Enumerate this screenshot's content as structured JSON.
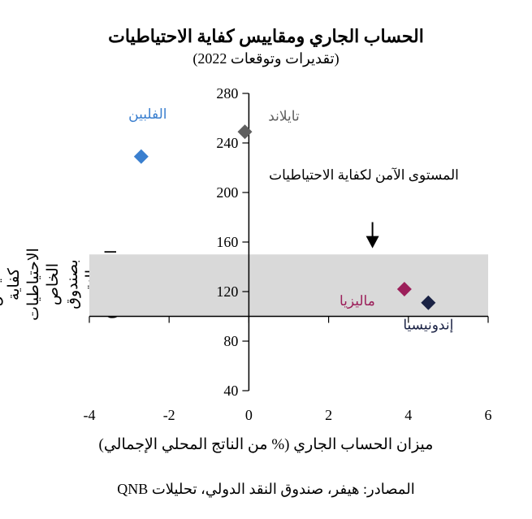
{
  "chart_data": {
    "type": "scatter",
    "title": "الحساب الجاري ومقاييس كفاية الاحتياطيات",
    "subtitle": "(تقديرات وتوقعات 2022)",
    "xlabel": "ميزان الحساب الجاري (% من الناتج المحلي الإجمالي)",
    "ylabel": "مقياس كفاية الاحتياطيات الخاص بصندوق النقد الدولي (%)",
    "xlim": [
      -4,
      6
    ],
    "ylim": [
      40,
      280
    ],
    "xticks": [
      -4,
      -2,
      0,
      2,
      4,
      6
    ],
    "yticks": [
      40,
      80,
      120,
      160,
      200,
      240,
      280
    ],
    "grid": false,
    "shaded_band": {
      "y": [
        100,
        150
      ],
      "color": "#d9d9d9"
    },
    "points": [
      {
        "label": "الفلبين",
        "x": -2.7,
        "y": 229,
        "color": "#3a7fcf"
      },
      {
        "label": "تايلاند",
        "x": -0.1,
        "y": 249,
        "color": "#5f5f5f"
      },
      {
        "label": "ماليزيا",
        "x": 3.9,
        "y": 122,
        "color": "#9c1f5a"
      },
      {
        "label": "إندونيسيا",
        "x": 4.5,
        "y": 111,
        "color": "#1a2244"
      }
    ],
    "annotation": {
      "text": "المستوى الآمن لكفاية الاحتياطيات",
      "arrow_x": 3.1,
      "arrow_from_y": 180,
      "arrow_to_y": 155
    }
  },
  "source": "المصادر: هيفر، صندوق النقد الدولي، تحليلات QNB"
}
